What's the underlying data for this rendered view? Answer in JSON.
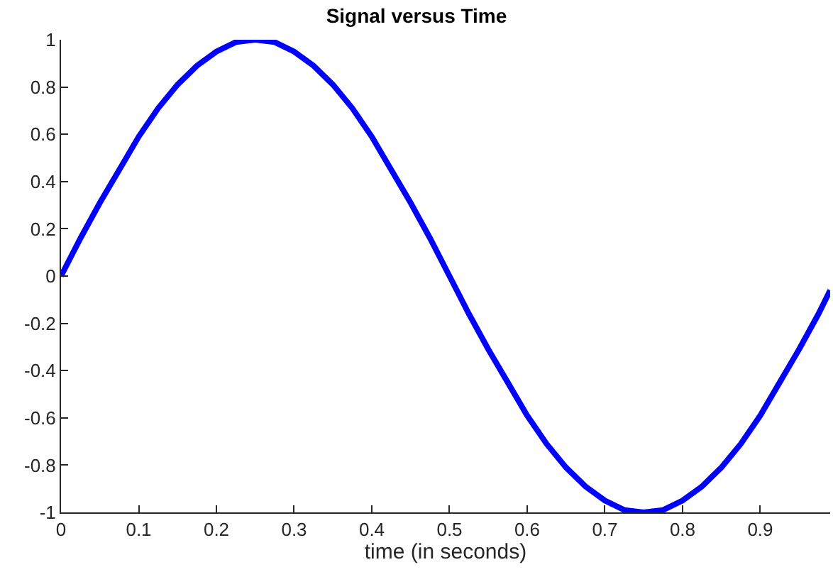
{
  "chart_data": {
    "type": "line",
    "title": "Signal versus Time",
    "xlabel": "time (in seconds)",
    "x": [
      0,
      0.025,
      0.05,
      0.075,
      0.1,
      0.125,
      0.15,
      0.175,
      0.2,
      0.225,
      0.25,
      0.275,
      0.3,
      0.325,
      0.35,
      0.375,
      0.4,
      0.425,
      0.45,
      0.475,
      0.5,
      0.525,
      0.55,
      0.575,
      0.6,
      0.625,
      0.65,
      0.675,
      0.7,
      0.725,
      0.75,
      0.775,
      0.8,
      0.825,
      0.85,
      0.875,
      0.9,
      0.925,
      0.95,
      0.975,
      0.99
    ],
    "series": [
      {
        "color": "#0000ff",
        "values": [
          0,
          0.16,
          0.31,
          0.45,
          0.59,
          0.71,
          0.81,
          0.89,
          0.95,
          0.99,
          1,
          0.99,
          0.95,
          0.89,
          0.81,
          0.71,
          0.59,
          0.45,
          0.31,
          0.16,
          0,
          -0.16,
          -0.31,
          -0.45,
          -0.59,
          -0.71,
          -0.81,
          -0.89,
          -0.95,
          -0.99,
          -1,
          -0.99,
          -0.95,
          -0.89,
          -0.81,
          -0.71,
          -0.59,
          -0.45,
          -0.31,
          -0.16,
          -0.06
        ]
      }
    ],
    "xlim": [
      0,
      0.99
    ],
    "xticks": [
      0,
      0.1,
      0.2,
      0.3,
      0.4,
      0.5,
      0.6,
      0.7,
      0.8,
      0.9
    ],
    "ylim": [
      -1,
      1
    ],
    "yticks": [
      -1,
      -0.8,
      -0.6,
      -0.4,
      -0.2,
      0,
      0.2,
      0.4,
      0.6,
      0.8,
      1
    ],
    "marker": "none",
    "line_style": "solid"
  }
}
